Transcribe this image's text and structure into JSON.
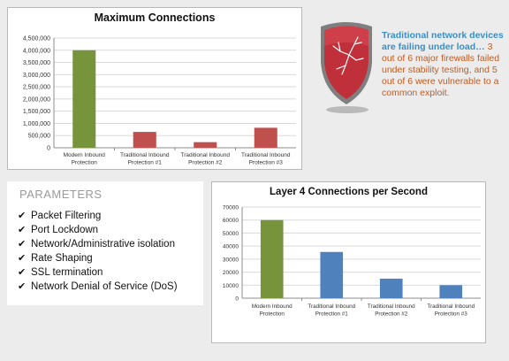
{
  "chart_data": [
    {
      "type": "bar",
      "title": "Maximum Connections",
      "categories": [
        "Modern Inbound Protection",
        "Traditional Inbound Protection #1",
        "Traditional Inbound Protection #2",
        "Traditional Inbound Protection #3"
      ],
      "category_lines": [
        [
          "Modern Inbound",
          "Protection"
        ],
        [
          "Traditional Inbound",
          "Protection #1"
        ],
        [
          "Traditional Inbound",
          "Protection #2"
        ],
        [
          "Traditional Inbound",
          "Protection #3"
        ]
      ],
      "values": [
        4000000,
        650000,
        230000,
        820000
      ],
      "bar_colors": [
        "#77933c",
        "#c0504d",
        "#c0504d",
        "#c0504d"
      ],
      "ylim": [
        0,
        4500000
      ],
      "yticks": [
        0,
        500000,
        1000000,
        1500000,
        2000000,
        2500000,
        3000000,
        3500000,
        4000000,
        4500000
      ],
      "ytick_labels": [
        "0",
        "500,000",
        "1,000,000",
        "1,500,000",
        "2,000,000",
        "2,500,000",
        "3,000,000",
        "3,500,000",
        "4,000,000",
        "4,500,000"
      ],
      "xlabel": "",
      "ylabel": "",
      "grid": true,
      "legend": "none"
    },
    {
      "type": "bar",
      "title": "Layer 4 Connections per Second",
      "categories": [
        "Modern Inbound Protection",
        "Traditional Inbound Protection #1",
        "Traditional Inbound Protection #2",
        "Traditional Inbound Protection #3"
      ],
      "category_lines": [
        [
          "Modern Inbound",
          "Protection"
        ],
        [
          "Traditional Inbound",
          "Protection #1"
        ],
        [
          "Traditional Inbound",
          "Protection #2"
        ],
        [
          "Traditional Inbound",
          "Protection #3"
        ]
      ],
      "values": [
        60000,
        35500,
        15000,
        10000
      ],
      "bar_colors": [
        "#77933c",
        "#4f81bd",
        "#4f81bd",
        "#4f81bd"
      ],
      "ylim": [
        0,
        70000
      ],
      "yticks": [
        0,
        10000,
        20000,
        30000,
        40000,
        50000,
        60000,
        70000
      ],
      "ytick_labels": [
        "0",
        "10000",
        "20000",
        "30000",
        "40000",
        "50000",
        "60000",
        "70000"
      ],
      "xlabel": "",
      "ylabel": "",
      "grid": true,
      "legend": "none"
    }
  ],
  "callout": {
    "highlight": "Traditional network devices are failing under load…",
    "body": " 3 out of 6 major firewalls failed under stability testing, and 5 out of 6 were vulnerable to a common exploit."
  },
  "shield_icon": "shield-cracked-icon",
  "parameters": {
    "title": "PARAMETERS",
    "check_glyph": "✔",
    "items": [
      "Packet Filtering",
      "Port Lockdown",
      "Network/Administrative isolation",
      "Rate Shaping",
      "SSL termination",
      "Network Denial of Service (DoS)"
    ]
  },
  "colors": {
    "highlight_text": "#3a8fc7",
    "body_text": "#c65a1e",
    "shield_red": "#c0303a"
  }
}
